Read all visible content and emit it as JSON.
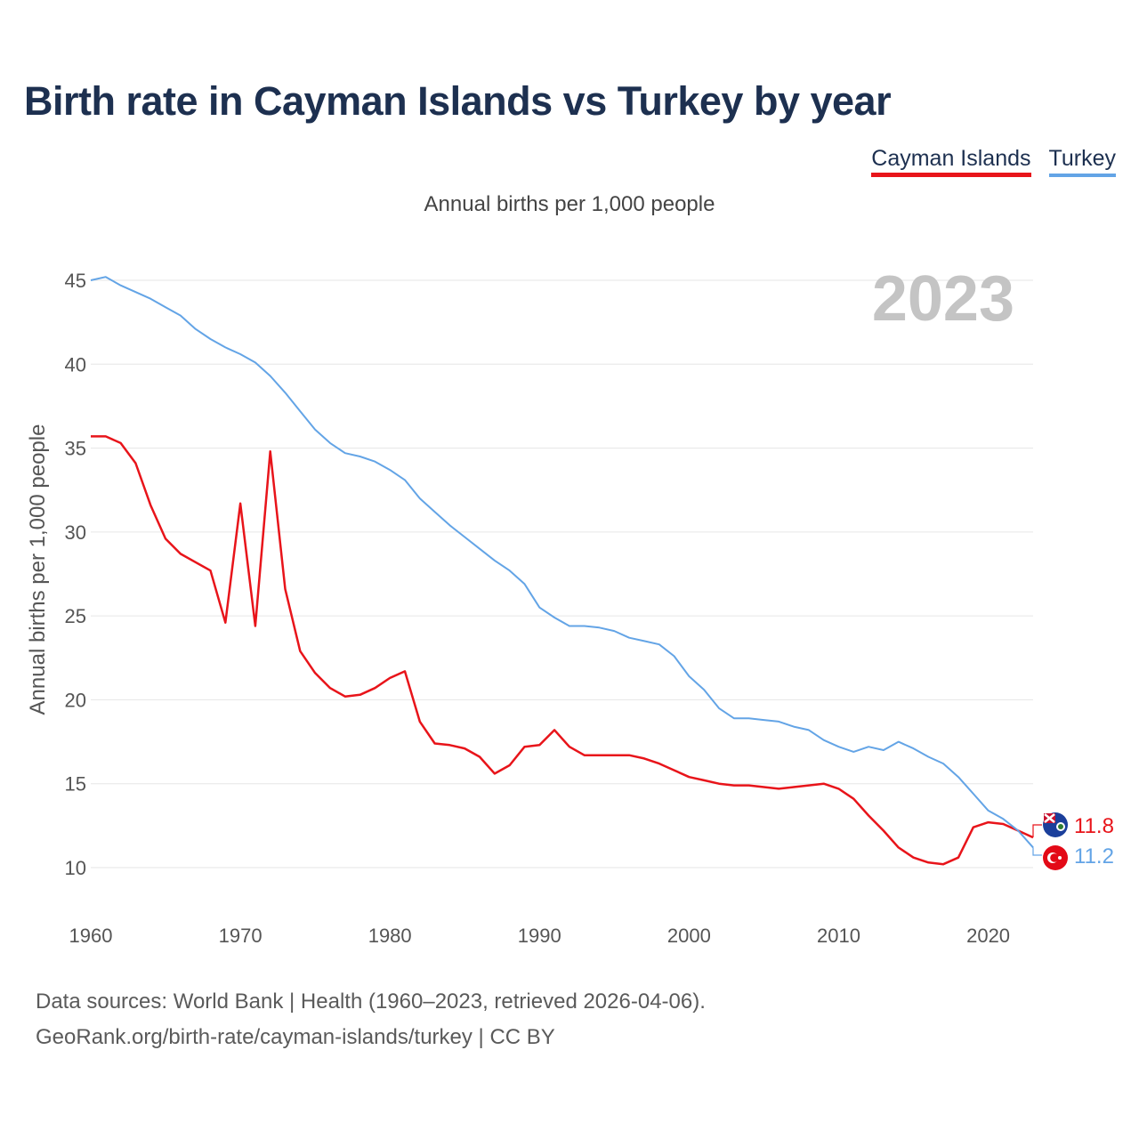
{
  "header": {
    "title": "Birth rate in Cayman Islands vs Turkey by year",
    "subtitle": "Annual births per 1,000 people"
  },
  "legend": {
    "cayman_label": "Cayman Islands",
    "turkey_label": "Turkey"
  },
  "colors": {
    "cayman": "#e8141a",
    "turkey": "#63a4e6",
    "title": "#1d3050",
    "year_watermark": "#c4c4c4"
  },
  "chart_data": {
    "type": "line",
    "title": "Birth rate in Cayman Islands vs Turkey by year",
    "ylabel": "Annual births per 1,000 people",
    "xlabel": "",
    "ylim": [
      10,
      45
    ],
    "xlim": [
      1960,
      2023
    ],
    "yticks": [
      10,
      15,
      20,
      25,
      30,
      35,
      40,
      45
    ],
    "xticks": [
      1960,
      1970,
      1980,
      1990,
      2000,
      2010,
      2020
    ],
    "year_label": "2023",
    "grid": true,
    "series": [
      {
        "name": "Cayman Islands",
        "color": "#e8141a",
        "end_label": "11.8",
        "x": [
          1960,
          1961,
          1962,
          1963,
          1964,
          1965,
          1966,
          1967,
          1968,
          1969,
          1970,
          1971,
          1972,
          1973,
          1974,
          1975,
          1976,
          1977,
          1978,
          1979,
          1980,
          1981,
          1982,
          1983,
          1984,
          1985,
          1986,
          1987,
          1988,
          1989,
          1990,
          1991,
          1992,
          1993,
          1994,
          1995,
          1996,
          1997,
          1998,
          1999,
          2000,
          2001,
          2002,
          2003,
          2004,
          2005,
          2006,
          2007,
          2008,
          2009,
          2010,
          2011,
          2012,
          2013,
          2014,
          2015,
          2016,
          2017,
          2018,
          2019,
          2020,
          2021,
          2022,
          2023
        ],
        "values": [
          35.7,
          35.7,
          35.3,
          34.1,
          31.6,
          29.6,
          28.7,
          28.2,
          27.7,
          24.6,
          31.7,
          24.4,
          34.8,
          26.6,
          22.9,
          21.6,
          20.7,
          20.2,
          20.3,
          20.7,
          21.3,
          21.7,
          18.7,
          17.4,
          17.3,
          17.1,
          16.6,
          15.6,
          16.1,
          17.2,
          17.3,
          18.2,
          17.2,
          16.7,
          16.7,
          16.7,
          16.7,
          16.5,
          16.2,
          15.8,
          15.4,
          15.2,
          15.0,
          14.9,
          14.9,
          14.8,
          14.7,
          14.8,
          14.9,
          15.0,
          14.7,
          14.1,
          13.1,
          12.2,
          11.2,
          10.6,
          10.3,
          10.2,
          10.6,
          12.4,
          12.7,
          12.6,
          12.2,
          11.8
        ]
      },
      {
        "name": "Turkey",
        "color": "#63a4e6",
        "end_label": "11.2",
        "x": [
          1960,
          1961,
          1962,
          1963,
          1964,
          1965,
          1966,
          1967,
          1968,
          1969,
          1970,
          1971,
          1972,
          1973,
          1974,
          1975,
          1976,
          1977,
          1978,
          1979,
          1980,
          1981,
          1982,
          1983,
          1984,
          1985,
          1986,
          1987,
          1988,
          1989,
          1990,
          1991,
          1992,
          1993,
          1994,
          1995,
          1996,
          1997,
          1998,
          1999,
          2000,
          2001,
          2002,
          2003,
          2004,
          2005,
          2006,
          2007,
          2008,
          2009,
          2010,
          2011,
          2012,
          2013,
          2014,
          2015,
          2016,
          2017,
          2018,
          2019,
          2020,
          2021,
          2022,
          2023
        ],
        "values": [
          45.0,
          45.2,
          44.7,
          44.3,
          43.9,
          43.4,
          42.9,
          42.1,
          41.5,
          41.0,
          40.6,
          40.1,
          39.3,
          38.3,
          37.2,
          36.1,
          35.3,
          34.7,
          34.5,
          34.2,
          33.7,
          33.1,
          32.0,
          31.2,
          30.4,
          29.7,
          29.0,
          28.3,
          27.7,
          26.9,
          25.5,
          24.9,
          24.4,
          24.4,
          24.3,
          24.1,
          23.7,
          23.5,
          23.3,
          22.6,
          21.4,
          20.6,
          19.5,
          18.9,
          18.9,
          18.8,
          18.7,
          18.4,
          18.2,
          17.6,
          17.2,
          16.9,
          17.2,
          17.0,
          17.5,
          17.1,
          16.6,
          16.2,
          15.4,
          14.4,
          13.4,
          12.9,
          12.2,
          11.2
        ]
      }
    ]
  },
  "footer": {
    "source_line1": "Data sources: World Bank | Health (1960–2023, retrieved 2026-04-06).",
    "source_line2": "GeoRank.org/birth-rate/cayman-islands/turkey | CC BY"
  }
}
